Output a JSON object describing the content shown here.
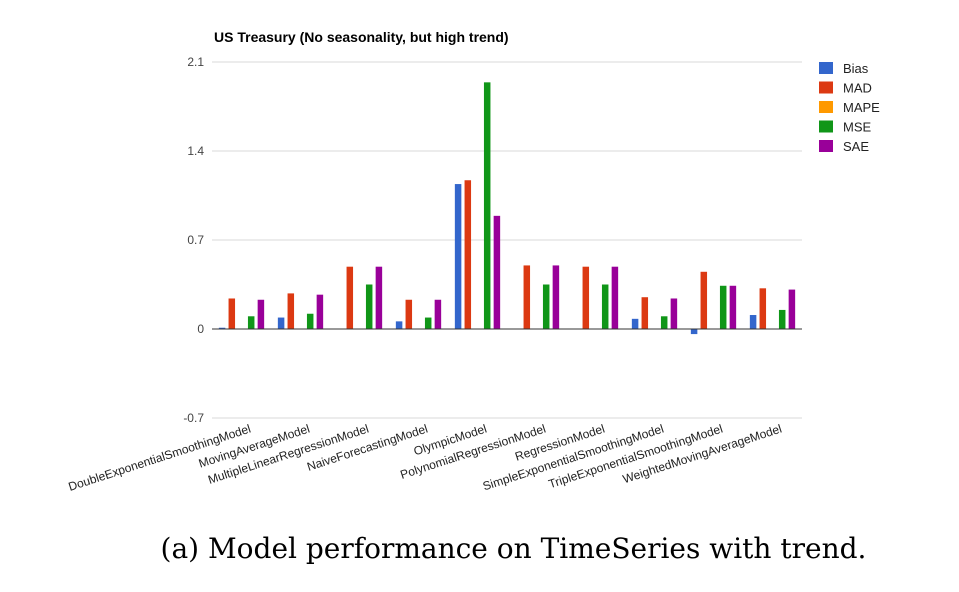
{
  "chart_data": {
    "type": "bar",
    "title": "US Treasury (No seasonality, but high trend)",
    "xlabel": "",
    "ylabel": "",
    "ylim": [
      -0.7,
      2.1
    ],
    "yticks": [
      "2.1",
      "1.4",
      "0.7",
      "0",
      "-0.7"
    ],
    "grid": true,
    "legend_position": "right",
    "categories": [
      "DoubleExponentialSmoothingModel",
      "MovingAverageModel",
      "MultipleLinearRegressionModel",
      "NaiveForecastingModel",
      "OlympicModel",
      "PolynomialRegressionModel",
      "RegressionModel",
      "SimpleExponentialSmoothingModel",
      "TripleExponentialSmoothingModel",
      "WeightedMovingAverageModel"
    ],
    "series": [
      {
        "name": "Bias",
        "color": "#3366cc",
        "values": [
          0.01,
          0.09,
          0.0,
          0.06,
          1.14,
          0.0,
          0.0,
          0.08,
          -0.04,
          0.11
        ]
      },
      {
        "name": "MAD",
        "color": "#dc3912",
        "values": [
          0.24,
          0.28,
          0.49,
          0.23,
          1.17,
          0.5,
          0.49,
          0.25,
          0.45,
          0.32
        ]
      },
      {
        "name": "MAPE",
        "color": "#ff9900",
        "values": [
          0,
          0,
          0,
          0,
          0,
          0,
          0,
          0,
          0,
          0
        ]
      },
      {
        "name": "MSE",
        "color": "#109618",
        "values": [
          0.1,
          0.12,
          0.35,
          0.09,
          1.94,
          0.35,
          0.35,
          0.1,
          0.34,
          0.15
        ]
      },
      {
        "name": "SAE",
        "color": "#990099",
        "values": [
          0.23,
          0.27,
          0.49,
          0.23,
          0.89,
          0.5,
          0.49,
          0.24,
          0.34,
          0.31
        ]
      }
    ]
  },
  "caption": "(a) Model performance on TimeSeries with trend."
}
